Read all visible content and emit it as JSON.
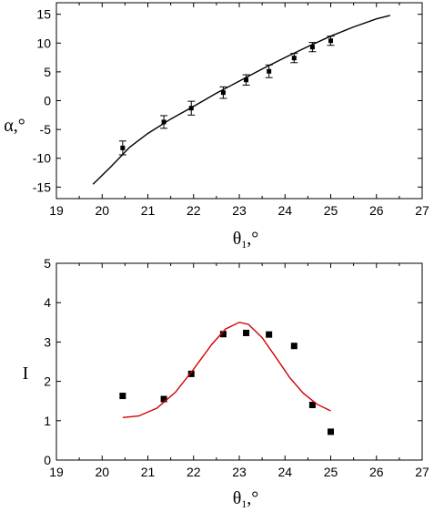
{
  "chart_data": [
    {
      "type": "scatter",
      "xlabel": {
        "base": "θ",
        "sub": "1",
        "unit": ",°"
      },
      "ylabel": "α,°",
      "xlim": [
        19,
        27
      ],
      "ylim": [
        -17,
        17
      ],
      "x_ticks": [
        19,
        20,
        21,
        22,
        23,
        24,
        25,
        26,
        27
      ],
      "y_ticks": [
        -15,
        -10,
        -5,
        0,
        5,
        10,
        15
      ],
      "x_tick_labels": [
        "19",
        "20",
        "21",
        "22",
        "23",
        "24",
        "25",
        "26",
        "27"
      ],
      "y_tick_labels": [
        "-15",
        "-10",
        "-5",
        "0",
        "5",
        "10",
        "15"
      ],
      "grid": false,
      "series": [
        {
          "kind": "points",
          "marker": "square",
          "color": "#000000",
          "x": [
            20.45,
            21.35,
            21.95,
            22.65,
            23.15,
            23.65,
            24.2,
            24.6,
            25.0
          ],
          "y": [
            -8.2,
            -3.7,
            -1.3,
            1.4,
            3.6,
            5.1,
            7.4,
            9.3,
            10.4
          ],
          "err": [
            1.2,
            1.1,
            1.2,
            1.0,
            0.9,
            1.1,
            0.8,
            0.8,
            0.8
          ]
        },
        {
          "kind": "line",
          "color": "#000000",
          "x": [
            19.8,
            20.2,
            20.6,
            21.0,
            21.5,
            22.0,
            22.5,
            23.0,
            23.5,
            24.0,
            24.5,
            25.0,
            25.5,
            26.0,
            26.3
          ],
          "y": [
            -14.5,
            -11.4,
            -8.1,
            -5.7,
            -3.2,
            -1.0,
            1.3,
            3.4,
            5.5,
            7.5,
            9.4,
            11.2,
            12.8,
            14.2,
            14.8
          ]
        }
      ]
    },
    {
      "type": "scatter",
      "xlabel": {
        "base": "θ",
        "sub": "1",
        "unit": ",°"
      },
      "ylabel": "I",
      "xlim": [
        19,
        27
      ],
      "ylim": [
        0,
        5
      ],
      "x_ticks": [
        19,
        20,
        21,
        22,
        23,
        24,
        25,
        26,
        27
      ],
      "y_ticks": [
        0,
        1,
        2,
        3,
        4,
        5
      ],
      "x_tick_labels": [
        "19",
        "20",
        "21",
        "22",
        "23",
        "24",
        "25",
        "26",
        "27"
      ],
      "y_tick_labels": [
        "0",
        "1",
        "2",
        "3",
        "4",
        "5"
      ],
      "grid": false,
      "series": [
        {
          "kind": "points",
          "marker": "square",
          "color": "#000000",
          "x": [
            20.45,
            21.35,
            21.95,
            22.65,
            23.15,
            23.65,
            24.2,
            24.6,
            25.0
          ],
          "y": [
            1.63,
            1.55,
            2.19,
            3.2,
            3.23,
            3.19,
            2.9,
            1.4,
            0.72
          ]
        },
        {
          "kind": "line",
          "color": "#d40000",
          "x": [
            20.45,
            20.8,
            21.2,
            21.6,
            22.0,
            22.4,
            22.7,
            23.0,
            23.2,
            23.5,
            23.8,
            24.1,
            24.4,
            24.7,
            25.0
          ],
          "y": [
            1.08,
            1.12,
            1.32,
            1.72,
            2.31,
            2.94,
            3.33,
            3.5,
            3.45,
            3.11,
            2.61,
            2.1,
            1.7,
            1.42,
            1.25
          ]
        }
      ]
    }
  ]
}
